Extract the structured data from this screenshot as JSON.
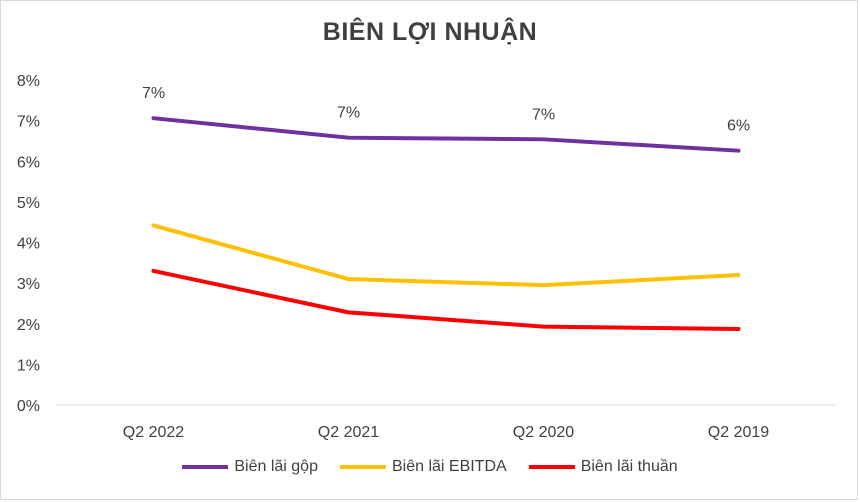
{
  "chart_data": {
    "type": "line",
    "title": "BIÊN LỢI NHUẬN",
    "categories": [
      "Q2 2022",
      "Q2 2021",
      "Q2 2020",
      "Q2 2019"
    ],
    "y_ticks": [
      "0%",
      "1%",
      "2%",
      "3%",
      "4%",
      "5%",
      "6%",
      "7%",
      "8%"
    ],
    "ylim": [
      0,
      8
    ],
    "series": [
      {
        "name": "Biên lãi gộp",
        "color": "#7030a0",
        "values": [
          7.06,
          6.58,
          6.54,
          6.26
        ],
        "data_labels": [
          "7%",
          "7%",
          "7%",
          "6%"
        ]
      },
      {
        "name": "Biên lãi EBITDA",
        "color": "#ffc000",
        "values": [
          4.42,
          3.1,
          2.95,
          3.2
        ]
      },
      {
        "name": "Biên lãi thuần",
        "color": "#ff0000",
        "values": [
          3.3,
          2.28,
          1.93,
          1.87
        ]
      }
    ]
  }
}
